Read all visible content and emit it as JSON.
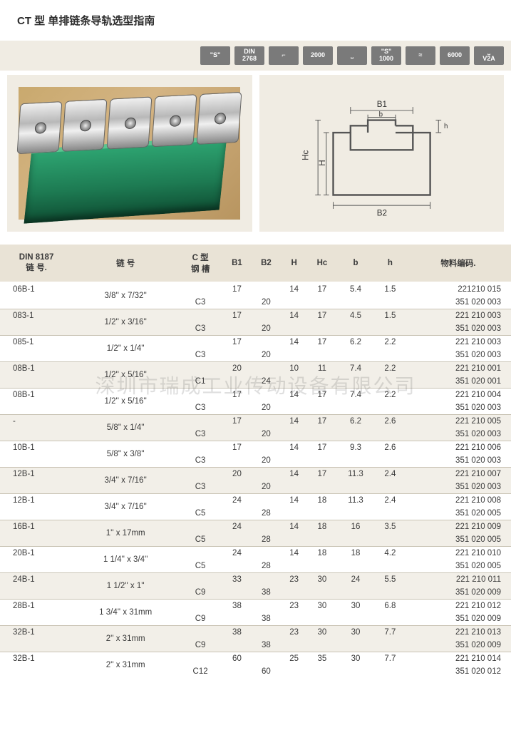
{
  "title": "CT 型  单排链条导轨选型指南",
  "badges": [
    "\"S\"",
    "DIN\n2768",
    "⌐",
    "2000",
    "⎵",
    "\"S\"\n1000",
    "≈",
    "6000",
    "⎵\nV2A"
  ],
  "diagram": {
    "labels": [
      "B1",
      "b",
      "h",
      "Hc",
      "H",
      "B2"
    ],
    "stroke": "#555555",
    "fill_colors": {
      "outline": "#555555",
      "bg": "#f0ece3"
    }
  },
  "watermark": "深圳市瑞成工业传动设备有限公司",
  "columns": [
    "DIN 8187\n链 号.",
    "链 号",
    "C 型\n钢 槽",
    "B1",
    "B2",
    "H",
    "Hc",
    "b",
    "h",
    "物料编码."
  ],
  "col_align": [
    "left",
    "center",
    "center",
    "center",
    "center",
    "center",
    "center",
    "center",
    "center",
    "right"
  ],
  "header_bg": "#e9e3d6",
  "row_alt_bg": "#f2efe8",
  "border_color": "#c9c3b4",
  "groups": [
    {
      "din": "06B-1",
      "chain": "3/8'' x 7/32''",
      "slot": "C3",
      "b1": "17",
      "b2": "20",
      "h": "14",
      "hc": "17",
      "bb": "5.4",
      "hh": "1.5",
      "codes": [
        "221210 015",
        "351 020 003"
      ],
      "shade": false
    },
    {
      "din": "083-1",
      "chain": "1/2'' x 3/16''",
      "slot": "C3",
      "b1": "17",
      "b2": "20",
      "h": "14",
      "hc": "17",
      "bb": "4.5",
      "hh": "1.5",
      "codes": [
        "221 210 003",
        "351 020 003"
      ],
      "shade": true
    },
    {
      "din": "085-1",
      "chain": "1/2'' x 1/4''",
      "slot": "C3",
      "b1": "17",
      "b2": "20",
      "h": "14",
      "hc": "17",
      "bb": "6.2",
      "hh": "2.2",
      "codes": [
        "221 210 003",
        "351 020 003"
      ],
      "shade": false
    },
    {
      "din": "08B-1",
      "chain": "1/2'' x 5/16''",
      "slot": "C1",
      "b1": "20",
      "b2": "24",
      "h": "10",
      "hc": "11",
      "bb": "7.4",
      "hh": "2.2",
      "codes": [
        "221 210 001",
        "351 020 001"
      ],
      "shade": true
    },
    {
      "din": "08B-1",
      "chain": "1/2'' x 5/16''",
      "slot": "C3",
      "b1": "17",
      "b2": "20",
      "h": "14",
      "hc": "17",
      "bb": "7.4",
      "hh": "2.2",
      "codes": [
        "221 210 004",
        "351 020 003"
      ],
      "shade": false
    },
    {
      "din": "-",
      "chain": "5/8'' x 1/4''",
      "slot": "C3",
      "b1": "17",
      "b2": "20",
      "h": "14",
      "hc": "17",
      "bb": "6.2",
      "hh": "2.6",
      "codes": [
        "221 210 005",
        "351 020 003"
      ],
      "shade": true
    },
    {
      "din": "10B-1",
      "chain": "5/8'' x 3/8''",
      "slot": "C3",
      "b1": "17",
      "b2": "20",
      "h": "14",
      "hc": "17",
      "bb": "9.3",
      "hh": "2.6",
      "codes": [
        "221 210 006",
        "351 020 003"
      ],
      "shade": false
    },
    {
      "din": "12B-1",
      "chain": "3/4'' x 7/16''",
      "slot": "C3",
      "b1": "20",
      "b2": "20",
      "h": "14",
      "hc": "17",
      "bb": "11.3",
      "hh": "2.4",
      "codes": [
        "221 210 007",
        "351 020 003"
      ],
      "shade": true
    },
    {
      "din": "12B-1",
      "chain": "3/4'' x 7/16''",
      "slot": "C5",
      "b1": "24",
      "b2": "28",
      "h": "14",
      "hc": "18",
      "bb": "11.3",
      "hh": "2.4",
      "codes": [
        "221 210 008",
        "351 020 005"
      ],
      "shade": false
    },
    {
      "din": "16B-1",
      "chain": "1'' x 17mm",
      "slot": "C5",
      "b1": "24",
      "b2": "28",
      "h": "14",
      "hc": "18",
      "bb": "16",
      "hh": "3.5",
      "codes": [
        "221 210 009",
        "351 020 005"
      ],
      "shade": true
    },
    {
      "din": "20B-1",
      "chain": "1 1/4'' x 3/4''",
      "slot": "C5",
      "b1": "24",
      "b2": "28",
      "h": "14",
      "hc": "18",
      "bb": "18",
      "hh": "4.2",
      "codes": [
        "221 210 010",
        "351 020 005"
      ],
      "shade": false
    },
    {
      "din": "24B-1",
      "chain": "1 1/2'' x 1''",
      "slot": "C9",
      "b1": "33",
      "b2": "38",
      "h": "23",
      "hc": "30",
      "bb": "24",
      "hh": "5.5",
      "codes": [
        "221 210 011",
        "351 020 009"
      ],
      "shade": true
    },
    {
      "din": "28B-1",
      "chain": "1 3/4'' x 31mm",
      "slot": "C9",
      "b1": "38",
      "b2": "38",
      "h": "23",
      "hc": "30",
      "bb": "30",
      "hh": "6.8",
      "codes": [
        "221 210 012",
        "351 020 009"
      ],
      "shade": false
    },
    {
      "din": "32B-1",
      "chain": "2'' x 31mm",
      "slot": "C9",
      "b1": "38",
      "b2": "38",
      "h": "23",
      "hc": "30",
      "bb": "30",
      "hh": "7.7",
      "codes": [
        "221 210 013",
        "351 020 009"
      ],
      "shade": true
    },
    {
      "din": "32B-1",
      "chain": "2'' x 31mm",
      "slot": "C12",
      "b1": "60",
      "b2": "60",
      "h": "25",
      "hc": "35",
      "bb": "30",
      "hh": "7.7",
      "codes": [
        "221 210 014",
        "351 020 012"
      ],
      "shade": false
    }
  ]
}
